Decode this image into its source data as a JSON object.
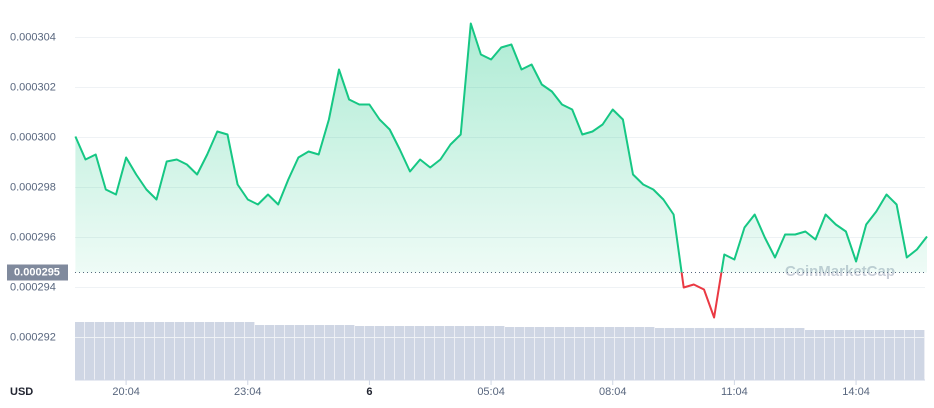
{
  "chart_data": {
    "type": "line",
    "currency": "USD",
    "watermark": "CoinMarketCap",
    "xlim": [
      -1.26,
      19.7
    ],
    "ylim": [
      0.0002903,
      0.0003055
    ],
    "xticks": [
      {
        "value": 0,
        "label": "20:04"
      },
      {
        "value": 3,
        "label": "23:04"
      },
      {
        "value": 6,
        "label": "6"
      },
      {
        "value": 9,
        "label": "05:04"
      },
      {
        "value": 12,
        "label": "08:04"
      },
      {
        "value": 15,
        "label": "11:04"
      },
      {
        "value": 18,
        "label": "14:04"
      }
    ],
    "yticks": [
      {
        "value": 0.000292,
        "label": "0.000292"
      },
      {
        "value": 0.000294,
        "label": "0.000294"
      },
      {
        "value": 0.000296,
        "label": "0.000296"
      },
      {
        "value": 0.000298,
        "label": "0.000298"
      },
      {
        "value": 0.0003,
        "label": "0.000300"
      },
      {
        "value": 0.000302,
        "label": "0.000302"
      },
      {
        "value": 0.000304,
        "label": "0.000304"
      }
    ],
    "reference": {
      "value": 0.0002946,
      "label": "0.000295"
    },
    "grid": true,
    "color": "#16c784",
    "below_color": "#ea3943",
    "volume_color": "#cfd6e4",
    "x": [
      -1.25,
      -1,
      -0.75,
      -0.5,
      -0.25,
      0,
      0.25,
      0.5,
      0.75,
      1,
      1.25,
      1.5,
      1.75,
      2,
      2.25,
      2.5,
      2.75,
      3,
      3.25,
      3.5,
      3.75,
      4,
      4.25,
      4.5,
      4.75,
      5,
      5.25,
      5.5,
      5.75,
      6,
      6.25,
      6.5,
      6.75,
      7,
      7.25,
      7.5,
      7.75,
      8,
      8.25,
      8.5,
      8.75,
      9,
      9.25,
      9.5,
      9.75,
      10,
      10.25,
      10.5,
      10.75,
      11,
      11.25,
      11.5,
      11.75,
      12,
      12.25,
      12.5,
      12.75,
      13,
      13.25,
      13.5,
      13.75,
      14,
      14.25,
      14.5,
      14.75,
      15,
      15.25,
      15.5,
      15.75,
      16,
      16.25,
      16.5,
      16.75,
      17,
      17.25,
      17.5,
      17.75,
      18,
      18.25,
      18.5,
      18.75,
      19,
      19.25,
      19.5,
      19.75
    ],
    "values": [
      0.00030004,
      0.00029912,
      0.00029932,
      0.00029792,
      0.00029772,
      0.0002992,
      0.00029852,
      0.00029792,
      0.00029752,
      0.00029904,
      0.00029912,
      0.00029892,
      0.00029852,
      0.00029932,
      0.00030024,
      0.00030012,
      0.00029812,
      0.00029752,
      0.00029732,
      0.00029772,
      0.00029732,
      0.00029832,
      0.0002992,
      0.00029944,
      0.00029932,
      0.00030072,
      0.00030272,
      0.00030152,
      0.00030132,
      0.00030132,
      0.00030072,
      0.00030032,
      0.00029952,
      0.00029864,
      0.00029912,
      0.0002988,
      0.00029912,
      0.00029972,
      0.00030012,
      0.00030456,
      0.00030332,
      0.00030312,
      0.0003036,
      0.00030372,
      0.00030272,
      0.00030292,
      0.00030212,
      0.00030184,
      0.00030132,
      0.00030112,
      0.00030012,
      0.00030024,
      0.00030052,
      0.00030112,
      0.00030072,
      0.00029852,
      0.00029812,
      0.00029792,
      0.00029752,
      0.00029692,
      0.000294,
      0.00029412,
      0.00029392,
      0.0002928,
      0.00029532,
      0.00029512,
      0.0002964,
      0.00029692,
      0.000296,
      0.0002952,
      0.00029612,
      0.00029612,
      0.00029624,
      0.00029592,
      0.00029692,
      0.00029652,
      0.00029624,
      0.00029504,
      0.00029652,
      0.00029704,
      0.00029772,
      0.00029732,
      0.0002952,
      0.00029552,
      0.00029604
    ],
    "volume": [
      58,
      58,
      58,
      58,
      58,
      58,
      58,
      58,
      58,
      58,
      58,
      58,
      58,
      58,
      58,
      58,
      58,
      58,
      55,
      55,
      55,
      55,
      55,
      55,
      55,
      55,
      55,
      55,
      54,
      54,
      54,
      54,
      54,
      54,
      54,
      54,
      54,
      54,
      54,
      54,
      54,
      54,
      54,
      53,
      53,
      53,
      53,
      53,
      53,
      53,
      53,
      53,
      53,
      53,
      53,
      53,
      53,
      53,
      52,
      52,
      52,
      52,
      52,
      52,
      52,
      52,
      52,
      52,
      52,
      52,
      52,
      52,
      52,
      50,
      50,
      50,
      50,
      50,
      50,
      50,
      50,
      50,
      50,
      50,
      50
    ]
  }
}
